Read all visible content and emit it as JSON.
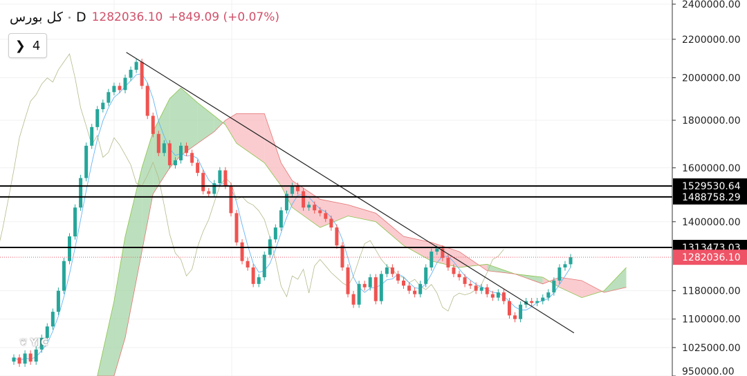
{
  "header": {
    "symbol": "کل بورس",
    "interval": "D",
    "last": "1282036.10",
    "change": "+849.09 (+0.07%)",
    "indicators_toggle": "4"
  },
  "watermark": "YJC",
  "colors": {
    "up": "#26a69a",
    "down": "#ef5350",
    "cloud_up": "#a5d6a7",
    "cloud_down": "#f8bbbf",
    "last_price": "#ef5366",
    "level": "#000000"
  },
  "chart_data": {
    "type": "candlestick",
    "y_scale": "log",
    "ylim": [
      950000,
      2420000
    ],
    "y_ticks": [
      "2400000.00",
      "2200000.00",
      "2000000.00",
      "1800000.00",
      "1600000.00",
      "1400000.00",
      "1180000.00",
      "1100000.00",
      "1025000.00",
      "950000.00"
    ],
    "y_tick_values": [
      2400000,
      2200000,
      2000000,
      1800000,
      1600000,
      1400000,
      1180000,
      1100000,
      1025000,
      950000
    ],
    "grid": true,
    "closes": [
      1000000,
      985000,
      1010000,
      990000,
      1020000,
      1050000,
      1080000,
      1120000,
      1180000,
      1270000,
      1350000,
      1450000,
      1560000,
      1690000,
      1770000,
      1850000,
      1880000,
      1930000,
      1960000,
      1940000,
      2000000,
      2040000,
      2080000,
      1960000,
      1820000,
      1740000,
      1660000,
      1700000,
      1610000,
      1630000,
      1690000,
      1660000,
      1620000,
      1580000,
      1510000,
      1500000,
      1540000,
      1590000,
      1530000,
      1430000,
      1330000,
      1270000,
      1250000,
      1200000,
      1220000,
      1290000,
      1340000,
      1380000,
      1440000,
      1500000,
      1530000,
      1510000,
      1450000,
      1460000,
      1440000,
      1430000,
      1410000,
      1380000,
      1320000,
      1250000,
      1170000,
      1140000,
      1200000,
      1190000,
      1220000,
      1150000,
      1230000,
      1250000,
      1230000,
      1210000,
      1195000,
      1180000,
      1170000,
      1200000,
      1250000,
      1300000,
      1310000,
      1280000,
      1250000,
      1230000,
      1220000,
      1200000,
      1195000,
      1180000,
      1190000,
      1170000,
      1160000,
      1175000,
      1150000,
      1110000,
      1100000,
      1140000,
      1150000,
      1145000,
      1150000,
      1160000,
      1175000,
      1210000,
      1250000,
      1260000,
      1282036.1
    ],
    "cloud": {
      "index": [
        15,
        18,
        20,
        23,
        25,
        28,
        30,
        33,
        36,
        38,
        40,
        45,
        48,
        50,
        55,
        60,
        65,
        70,
        75,
        80,
        85,
        90,
        95,
        98,
        102,
        106,
        110
      ],
      "span_a": [
        950000,
        1150000,
        1350000,
        1600000,
        1750000,
        1900000,
        1950000,
        1880000,
        1820000,
        1780000,
        1700000,
        1620000,
        1530000,
        1450000,
        1380000,
        1420000,
        1400000,
        1320000,
        1270000,
        1250000,
        1260000,
        1230000,
        1220000,
        1190000,
        1160000,
        1180000,
        1250000
      ],
      "span_b": [
        900000,
        950000,
        1050000,
        1300000,
        1500000,
        1600000,
        1650000,
        1700000,
        1750000,
        1800000,
        1830000,
        1830000,
        1620000,
        1550000,
        1480000,
        1460000,
        1430000,
        1350000,
        1330000,
        1300000,
        1240000,
        1230000,
        1200000,
        1220000,
        1210000,
        1175000,
        1190000
      ]
    },
    "trend_line": {
      "from": [
        20.2,
        2130000
      ],
      "to": [
        100.6,
        1063000
      ]
    },
    "levels": [
      {
        "value": 1529530.64,
        "label": "1529530.64"
      },
      {
        "value": 1488758.29,
        "label": "1488758.29"
      },
      {
        "value": 1313473.03,
        "label": "1313473.03"
      }
    ],
    "last_price": {
      "value": 1282036.1,
      "label": "1282036.10"
    }
  }
}
